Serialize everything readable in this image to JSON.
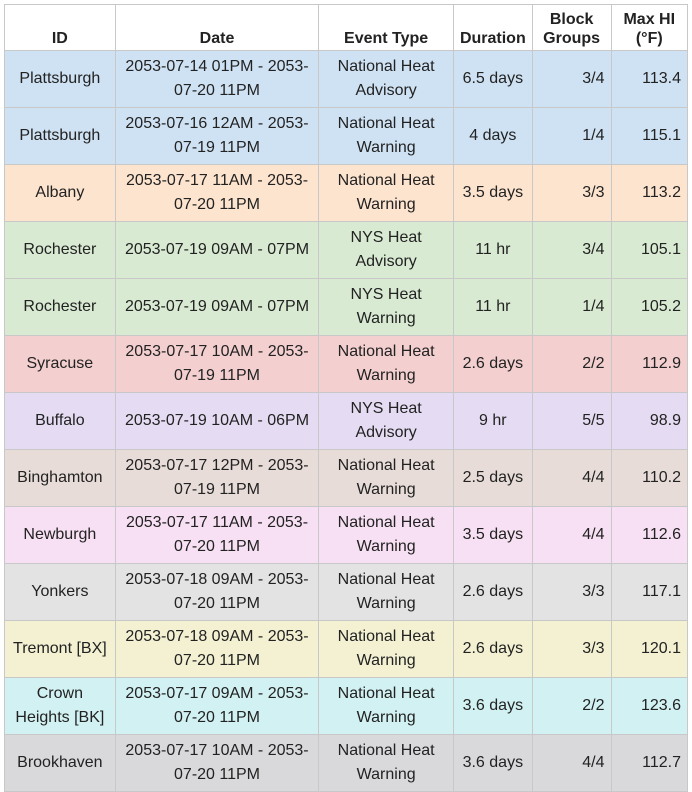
{
  "table": {
    "header": [
      "ID",
      "Date",
      "Event Type",
      "Duration",
      "Block Groups",
      "Max HI (°F)"
    ],
    "rows": [
      [
        "Plattsburgh",
        "2053-07-14 01PM - 2053-07-20 11PM",
        "National Heat Advisory",
        "6.5 days",
        "3/4",
        113.4
      ],
      [
        "Plattsburgh",
        "2053-07-16 12AM - 2053-07-19 11PM",
        "National Heat Warning",
        "4 days",
        "1/4",
        115.1
      ],
      [
        "Albany",
        "2053-07-17 11AM - 2053-07-20 11PM",
        "National Heat Warning",
        "3.5 days",
        "3/3",
        113.2
      ],
      [
        "Rochester",
        "2053-07-19 09AM - 07PM",
        "NYS Heat Advisory",
        "11 hr",
        "3/4",
        105.1
      ],
      [
        "Rochester",
        "2053-07-19 09AM - 07PM",
        "NYS Heat Warning",
        "11 hr",
        "1/4",
        105.2
      ],
      [
        "Syracuse",
        "2053-07-17 10AM - 2053-07-19 11PM",
        "National Heat Warning",
        "2.6 days",
        "2/2",
        112.9
      ],
      [
        "Buffalo",
        "2053-07-19 10AM - 06PM",
        "NYS Heat Advisory",
        "9 hr",
        "5/5",
        98.9
      ],
      [
        "Binghamton",
        "2053-07-17 12PM - 2053-07-19 11PM",
        "National Heat Warning",
        "2.5 days",
        "4/4",
        110.2
      ],
      [
        "Newburgh",
        "2053-07-17 11AM - 2053-07-20 11PM",
        "National Heat Warning",
        "3.5 days",
        "4/4",
        112.6
      ],
      [
        "Yonkers",
        "2053-07-18 09AM - 2053-07-20 11PM",
        "National Heat Warning",
        "2.6 days",
        "3/3",
        117.1
      ],
      [
        "Tremont [BX]",
        "2053-07-18 09AM - 2053-07-20 11PM",
        "National Heat Warning",
        "2.6 days",
        "3/3",
        120.1
      ],
      [
        "Crown Heights [BK]",
        "2053-07-17 09AM - 2053-07-20 11PM",
        "National Heat Warning",
        "3.6 days",
        "2/2",
        123.6
      ],
      [
        "Brookhaven",
        "2053-07-17 10AM - 2053-07-20 11PM",
        "National Heat Warning",
        "3.6 days",
        "4/4",
        112.7
      ]
    ]
  }
}
